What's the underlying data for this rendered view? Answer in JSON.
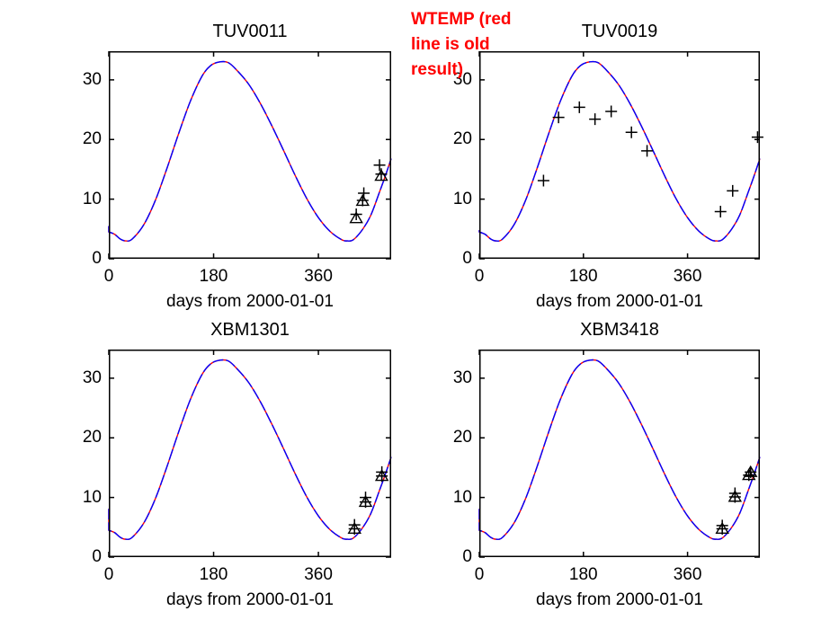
{
  "figure": {
    "background": "#ffffff",
    "annotation": {
      "text": "WTEMP (red line is old result)",
      "lines": [
        "WTEMP (red",
        "line is old",
        "result)"
      ],
      "color": "#ff0000"
    }
  },
  "labels": {
    "xlabel": "days from 2000-01-01"
  },
  "chart_data": {
    "type": "line",
    "note": "Four subplots each show the same fitted seasonal water-temperature curve (blue = new result drawn over red = old result, lines coincide) with observed data markers (+ and open triangles).",
    "legend_position": "none",
    "axes": {
      "x_ticks": [
        0,
        180,
        360
      ],
      "y_ticks": [
        0,
        10,
        20,
        30
      ],
      "x_range": [
        0,
        485
      ],
      "y_range": [
        0,
        34.8
      ],
      "xlabel": "days from 2000-01-01",
      "grid": false
    },
    "colors": {
      "new_line": "#0000ff",
      "old_line": "#ff0000",
      "markers": "#000000",
      "axis": "#000000"
    },
    "curve": {
      "name": "fitted seasonal cycle (identical in all subplots)",
      "t": [
        0,
        10,
        20,
        29,
        40,
        60,
        80,
        100,
        120,
        140,
        160,
        175,
        190,
        205,
        220,
        240,
        260,
        280,
        300,
        320,
        340,
        360,
        380,
        400,
        410,
        420,
        435,
        450,
        465,
        475,
        485
      ],
      "v": [
        4.5,
        4.1,
        3.3,
        3.0,
        3.3,
        5.7,
        9.8,
        15.2,
        21.0,
        26.4,
        30.6,
        32.4,
        33.0,
        32.9,
        31.6,
        29.3,
        26.1,
        22.3,
        18.2,
        14.0,
        10.1,
        6.9,
        4.6,
        3.2,
        3.0,
        3.2,
        4.8,
        7.3,
        11.2,
        13.9,
        16.8
      ]
    },
    "charts": [
      {
        "title": "TUV0011",
        "start_value": 5.5,
        "plus_points": [
          [
            425,
            7.45
          ],
          [
            438,
            11.0
          ],
          [
            465,
            15.7
          ],
          [
            436,
            9.8
          ],
          [
            468,
            14.2
          ]
        ],
        "triangle_points": [
          [
            425,
            6.8
          ],
          [
            436,
            9.7
          ],
          [
            468,
            13.9
          ]
        ]
      },
      {
        "title": "TUV0019",
        "start_value": 4.8,
        "plus_points": [
          [
            111,
            13.1
          ],
          [
            137,
            23.7
          ],
          [
            173,
            25.4
          ],
          [
            200,
            23.4
          ],
          [
            228,
            24.7
          ],
          [
            263,
            21.2
          ],
          [
            290,
            18.1
          ],
          [
            417,
            7.9
          ],
          [
            438,
            11.4
          ],
          [
            481,
            20.4
          ]
        ],
        "triangle_points": []
      },
      {
        "title": "XBM1301",
        "start_value": 8.1,
        "plus_points": [
          [
            422,
            5.4
          ],
          [
            441,
            10.0
          ],
          [
            469,
            14.25
          ],
          [
            422,
            4.75
          ],
          [
            441,
            9.25
          ],
          [
            469,
            13.6
          ]
        ],
        "triangle_points": [
          [
            422,
            4.75
          ],
          [
            441,
            9.25
          ],
          [
            469,
            13.6
          ]
        ]
      },
      {
        "title": "XBM3418",
        "start_value": 8.1,
        "plus_points": [
          [
            420,
            5.3
          ],
          [
            442,
            10.7
          ],
          [
            466,
            13.75
          ],
          [
            469,
            14.25
          ],
          [
            420,
            4.75
          ],
          [
            442,
            10.1
          ]
        ],
        "triangle_points": [
          [
            420,
            4.75
          ],
          [
            442,
            10.1
          ],
          [
            466,
            13.75
          ],
          [
            469,
            14.25
          ]
        ]
      }
    ]
  }
}
